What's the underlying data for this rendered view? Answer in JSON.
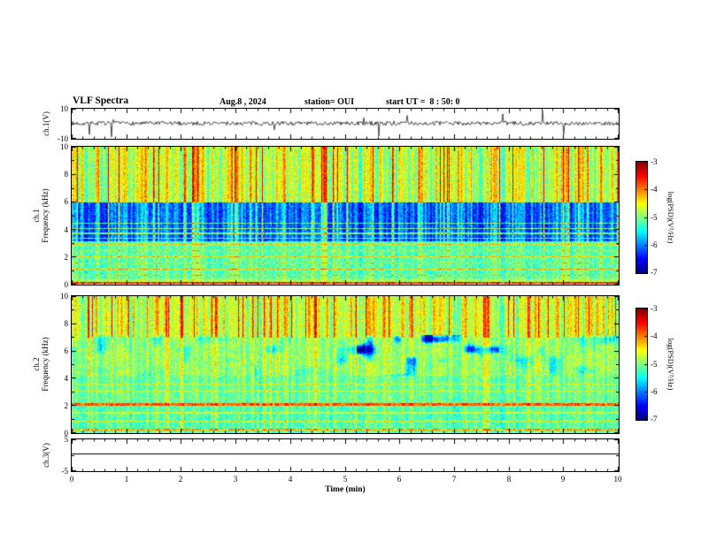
{
  "header": {
    "title": "VLF Spectra",
    "date": "Aug.8 , 2024",
    "station": "station= OUI",
    "start_ut": "start UT =  8 : 50: 0"
  },
  "axes": {
    "x": {
      "label": "Time (min)",
      "ticks": [
        {
          "v": 0,
          "t": "0"
        },
        {
          "v": 1,
          "t": "1"
        },
        {
          "v": 2,
          "t": "2"
        },
        {
          "v": 3,
          "t": "3"
        },
        {
          "v": 4,
          "t": "4"
        },
        {
          "v": 5,
          "t": "5"
        },
        {
          "v": 6,
          "t": "6"
        },
        {
          "v": 7,
          "t": "7"
        },
        {
          "v": 8,
          "t": "8"
        },
        {
          "v": 9,
          "t": "9"
        },
        {
          "v": 10,
          "t": "10"
        }
      ]
    },
    "ch1_wave": {
      "label": "ch.1(V)",
      "lim": [
        -10,
        10
      ],
      "ticks": [
        {
          "v": 10,
          "t": "10"
        },
        {
          "v": -10,
          "t": "-10"
        }
      ]
    },
    "spec1": {
      "label_line1": "ch.1",
      "label_line2": "Frequency (kHz)",
      "lim": [
        0,
        10
      ],
      "ticks": [
        {
          "v": 10,
          "t": "10"
        },
        {
          "v": 8,
          "t": "8"
        },
        {
          "v": 6,
          "t": "6"
        },
        {
          "v": 4,
          "t": "4"
        },
        {
          "v": 2,
          "t": "2"
        },
        {
          "v": 0,
          "t": "0"
        }
      ]
    },
    "spec2": {
      "label_line1": "ch.2",
      "label_line2": "Frequency (kHz)",
      "lim": [
        0,
        10
      ],
      "ticks": [
        {
          "v": 10,
          "t": "10"
        },
        {
          "v": 8,
          "t": "8"
        },
        {
          "v": 6,
          "t": "6"
        },
        {
          "v": 4,
          "t": "4"
        },
        {
          "v": 2,
          "t": "2"
        },
        {
          "v": 0,
          "t": "0"
        }
      ]
    },
    "ch3_wave": {
      "label": "ch.3(V)",
      "lim": [
        -5,
        5
      ],
      "ticks": [
        {
          "v": 5,
          "t": "5"
        },
        {
          "v": -5,
          "t": "-5"
        }
      ]
    }
  },
  "colorbar": {
    "label": "log(PSD)(V²/Hz)",
    "range": [
      -3,
      -7
    ],
    "ticks": [
      {
        "v": -3,
        "t": "-3"
      },
      {
        "v": -4,
        "t": "-4"
      },
      {
        "v": -5,
        "t": "-5"
      },
      {
        "v": -6,
        "t": "-6"
      },
      {
        "v": -7,
        "t": "-7"
      }
    ]
  },
  "chart_data": [
    {
      "type": "line",
      "name": "ch1-voltage",
      "title": "ch.1 waveform",
      "xlabel": "Time (min)",
      "ylabel": "ch.1(V)",
      "xlim": [
        0,
        10
      ],
      "ylim": [
        -10,
        10
      ],
      "description": "Dense noise band centered on 0 V with frequent impulsive spikes reaching toward +/-10 V over the 10-minute record",
      "render": {
        "seed": 7,
        "noiseAmp": 1.4,
        "spikeProb": 0.03,
        "spikeAmp": 9
      }
    },
    {
      "type": "heatmap",
      "name": "ch1-spectrogram",
      "title": "ch.1 VLF spectrogram",
      "xlabel": "Time (min)",
      "ylabel": "Frequency (kHz)",
      "xlim": [
        0,
        10
      ],
      "ylim": [
        0,
        10
      ],
      "colormap": "jet",
      "colorbar_label": "log(PSD)(V²/Hz)",
      "colorbar_range": [
        -3,
        -7
      ],
      "description": "Vertically streaked broadband sferics: green-yellow with many red streaks above 6 kHz, dark blue band 3.2-6 kHz crossed by cyan streaks and horizontal lines, cyan-green speckle below 3.2 kHz with bright horizontal interference lines",
      "render": {
        "seed": 101,
        "fmax": 10,
        "noise": 0.18,
        "bands": [
          {
            "f0": 6,
            "f1": 10.2,
            "base": 0.4,
            "streak": 0.5
          },
          {
            "f0": 3.2,
            "f1": 6,
            "base": 0.08,
            "streak": 0.45
          },
          {
            "f0": 0.45,
            "f1": 3.2,
            "base": 0.4,
            "streak": 0.18
          },
          {
            "f0": 0,
            "f1": 0.45,
            "base": 0.48,
            "streak": 0.15
          }
        ],
        "lines": [
          {
            "f": 0.15,
            "w": 0.08,
            "boost": 0.3
          },
          {
            "f": 0.7,
            "w": 0.05,
            "boost": 0.2
          },
          {
            "f": 1.15,
            "w": 0.05,
            "boost": 0.22
          },
          {
            "f": 1.6,
            "w": 0.05,
            "boost": 0.18
          },
          {
            "f": 2.05,
            "w": 0.05,
            "boost": 0.2
          },
          {
            "f": 2.5,
            "w": 0.05,
            "boost": 0.18
          },
          {
            "f": 2.95,
            "w": 0.05,
            "boost": 0.2
          },
          {
            "f": 3.4,
            "w": 0.05,
            "boost": 0.28
          },
          {
            "f": 3.75,
            "w": 0.04,
            "boost": 0.26
          },
          {
            "f": 4.1,
            "w": 0.05,
            "boost": 0.28
          },
          {
            "f": 4.5,
            "w": 0.04,
            "boost": 0.24
          }
        ]
      }
    },
    {
      "type": "heatmap",
      "name": "ch2-spectrogram",
      "title": "ch.2 VLF spectrogram",
      "xlabel": "Time (min)",
      "ylabel": "Frequency (kHz)",
      "xlim": [
        0,
        10
      ],
      "ylim": [
        0,
        10
      ],
      "colormap": "jet",
      "colorbar_label": "log(PSD)(V²/Hz)",
      "colorbar_range": [
        -3,
        -7
      ],
      "description": "Green-yellow streaked field with red streaks above 7 kHz, green 4-7 kHz interrupted by dark blue patches mainly between 5.5 and 7.5 min, bright continuous yellow-green line near 2 kHz, cyan speckle with fine horizontal lines below 2 kHz",
      "render": {
        "seed": 202,
        "fmax": 10,
        "noise": 0.18,
        "bands": [
          {
            "f0": 7,
            "f1": 10.2,
            "base": 0.42,
            "streak": 0.45
          },
          {
            "f0": 4.2,
            "f1": 7,
            "base": 0.45,
            "streak": 0.2
          },
          {
            "f0": 2.3,
            "f1": 4.2,
            "base": 0.42,
            "streak": 0.16
          },
          {
            "f0": 0,
            "f1": 2.3,
            "base": 0.4,
            "streak": 0.15
          }
        ],
        "lines": [
          {
            "f": 2.1,
            "w": 0.1,
            "boost": 0.32
          },
          {
            "f": 0.3,
            "w": 0.06,
            "boost": 0.25
          },
          {
            "f": 0.9,
            "w": 0.05,
            "boost": 0.15
          },
          {
            "f": 1.5,
            "w": 0.05,
            "boost": 0.12
          },
          {
            "f": 3.1,
            "w": 0.04,
            "boost": 0.1
          },
          {
            "f": 3.6,
            "w": 0.04,
            "boost": 0.1
          }
        ],
        "patches": {
          "f0": 4.2,
          "f1": 7.2,
          "sx": 16,
          "sy": 12,
          "th": 0.58,
          "depth": 0.55,
          "xw": [
            0.52,
            0.78
          ]
        }
      }
    },
    {
      "type": "line",
      "name": "ch3-voltage",
      "title": "ch.3 waveform",
      "xlabel": "Time (min)",
      "ylabel": "ch.3(V)",
      "xlim": [
        0,
        10
      ],
      "ylim": [
        -5,
        5
      ],
      "value": 0.5,
      "description": "Flat constant trace at about +0.5 V for the whole record"
    }
  ]
}
